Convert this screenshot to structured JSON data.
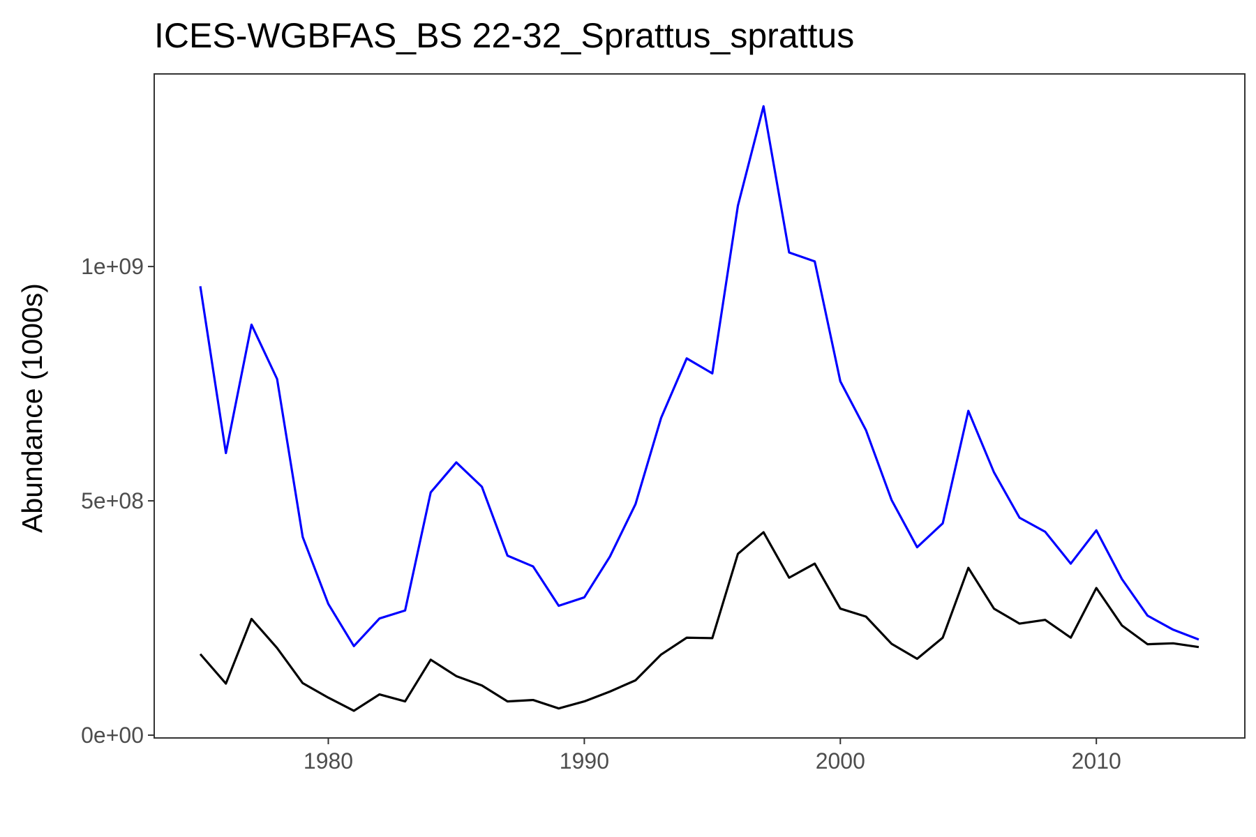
{
  "chart_data": {
    "type": "line",
    "title": "ICES-WGBFAS_BS 22-32_Sprattus_sprattus",
    "xlabel": "",
    "ylabel": "Abundance (1000s)",
    "xlim": [
      1973.2,
      2015.8
    ],
    "ylim": [
      -6000000.0,
      1411000000.0
    ],
    "x_ticks": [
      {
        "value": 1980,
        "label": "1980"
      },
      {
        "value": 1990,
        "label": "1990"
      },
      {
        "value": 2000,
        "label": "2000"
      },
      {
        "value": 2010,
        "label": "2010"
      }
    ],
    "y_ticks": [
      {
        "value": 0,
        "label": "0e+00"
      },
      {
        "value": 500000000,
        "label": "5e+08"
      },
      {
        "value": 1000000000,
        "label": "1e+09"
      }
    ],
    "grid": false,
    "legend": "none",
    "x": [
      1975,
      1976,
      1977,
      1978,
      1979,
      1980,
      1981,
      1982,
      1983,
      1984,
      1985,
      1986,
      1987,
      1988,
      1989,
      1990,
      1991,
      1992,
      1993,
      1994,
      1995,
      1996,
      1997,
      1998,
      1999,
      2000,
      2001,
      2002,
      2003,
      2004,
      2005,
      2006,
      2007,
      2008,
      2009,
      2010,
      2011,
      2012,
      2013,
      2014
    ],
    "series": [
      {
        "color": "#0000ff",
        "values": [
          958000000,
          602000000,
          876000000,
          760000000,
          423000000,
          280000000,
          190000000,
          249000000,
          266000000,
          518000000,
          582000000,
          530000000,
          383000000,
          360000000,
          276000000,
          294000000,
          381000000,
          493000000,
          677000000,
          804000000,
          772000000,
          1130000000,
          1342000000,
          1030000000,
          1011000000,
          755000000,
          651000000,
          502000000,
          401000000,
          452000000,
          692000000,
          561000000,
          464000000,
          434000000,
          366000000,
          437000000,
          333000000,
          255000000,
          225000000,
          204000000
        ]
      },
      {
        "color": "#000000",
        "values": [
          173000000,
          110000000,
          248000000,
          186000000,
          111000000,
          80000000,
          52000000,
          87000000,
          72000000,
          161000000,
          126000000,
          106000000,
          72000000,
          75000000,
          57000000,
          72000000,
          93000000,
          117000000,
          172000000,
          208000000,
          207000000,
          387000000,
          433000000,
          336000000,
          366000000,
          270000000,
          253000000,
          195000000,
          163000000,
          208000000,
          357000000,
          270000000,
          238000000,
          246000000,
          208000000,
          314000000,
          234000000,
          194000000,
          196000000,
          188000000
        ]
      }
    ]
  }
}
